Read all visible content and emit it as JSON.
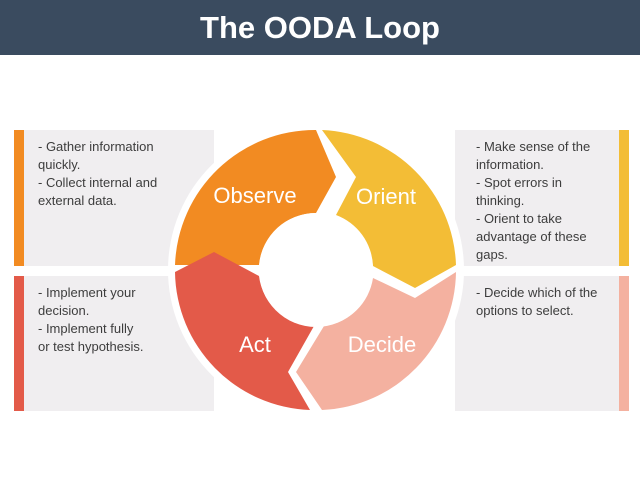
{
  "title": "The OODA Loop",
  "colors": {
    "observe": "#f28b22",
    "orient": "#f3bd36",
    "decide": "#f4b1a0",
    "act": "#e35a49",
    "header": "#3a4b5f",
    "panel": "#f0eef0"
  },
  "stages": {
    "observe": {
      "label": "Observe",
      "notes": [
        "- Gather information",
        "quickly.",
        "- Collect internal and",
        "external data."
      ]
    },
    "orient": {
      "label": "Orient",
      "notes": [
        "- Make sense of the",
        "information.",
        "- Spot errors in",
        "thinking.",
        "- Orient to take",
        "advantage of these",
        "gaps."
      ]
    },
    "decide": {
      "label": "Decide",
      "notes": [
        "- Decide which of the",
        "options to select."
      ]
    },
    "act": {
      "label": "Act",
      "notes": [
        "- Implement your",
        "decision.",
        "- Implement fully",
        "or test hypothesis."
      ]
    }
  }
}
